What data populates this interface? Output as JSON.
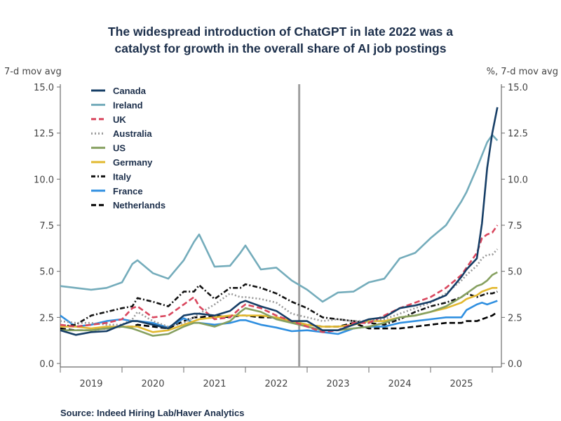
{
  "title_lines": [
    "The widespread introduction of ChatGPT in late 2022 was a",
    "catalyst for growth in the overall share of AI job postings"
  ],
  "left_unit": "7-d mov avg",
  "right_unit": "%, 7-d mov avg",
  "source": "Source:  Indeed Hiring Lab/Haver Analytics",
  "chart_data": {
    "type": "line",
    "title": "The widespread introduction of ChatGPT in late 2022 was a catalyst for growth in the overall share of AI job postings",
    "ylabel_left": "7-d mov avg",
    "ylabel_right": "%, 7-d mov avg",
    "ylim": [
      0,
      15
    ],
    "yticks": [
      "0.0",
      "2.5",
      "5.0",
      "7.5",
      "10.0",
      "12.5",
      "15.0"
    ],
    "xticks": [
      "2019",
      "2020",
      "2021",
      "2022",
      "2023",
      "2024",
      "2025"
    ],
    "grid": false,
    "legend": "top-left",
    "vline_x": "2022-12",
    "vline_color": "#a0a0a0",
    "x": [
      "2019-01",
      "2019-04",
      "2019-07",
      "2019-10",
      "2020-01",
      "2020-03",
      "2020-04",
      "2020-07",
      "2020-10",
      "2021-01",
      "2021-03",
      "2021-04",
      "2021-07",
      "2021-10",
      "2021-12",
      "2022-01",
      "2022-04",
      "2022-07",
      "2022-10",
      "2023-01",
      "2023-04",
      "2023-07",
      "2023-10",
      "2024-01",
      "2024-04",
      "2024-07",
      "2024-10",
      "2025-01",
      "2025-04",
      "2025-07",
      "2025-08",
      "2025-10",
      "2025-11",
      "2025-12",
      "2026-01",
      "2026-02"
    ],
    "series": [
      {
        "name": "Canada",
        "color": "#163e66",
        "dash": "solid",
        "values": [
          1.8,
          1.55,
          1.7,
          1.75,
          2.1,
          2.3,
          2.3,
          2.1,
          1.9,
          2.6,
          2.7,
          2.7,
          2.6,
          2.85,
          3.3,
          3.4,
          3.1,
          2.85,
          2.3,
          2.3,
          1.8,
          1.8,
          2.1,
          2.4,
          2.5,
          3.0,
          3.15,
          3.35,
          3.7,
          4.7,
          5.1,
          5.7,
          7.6,
          10.6,
          12.5,
          13.9
        ]
      },
      {
        "name": "Ireland",
        "color": "#74acbb",
        "dash": "solid",
        "values": [
          4.2,
          4.1,
          4.0,
          4.1,
          4.4,
          5.4,
          5.6,
          4.9,
          4.6,
          5.6,
          6.6,
          7.0,
          5.25,
          5.3,
          6.0,
          6.4,
          5.1,
          5.2,
          4.5,
          4.0,
          3.35,
          3.85,
          3.9,
          4.4,
          4.6,
          5.7,
          6.0,
          6.8,
          7.5,
          8.8,
          9.3,
          10.6,
          11.3,
          12.0,
          12.4,
          12.1
        ]
      },
      {
        "name": "UK",
        "color": "#d9475e",
        "dash": "dashed",
        "values": [
          2.1,
          2.0,
          2.1,
          2.2,
          2.4,
          3.0,
          3.1,
          2.5,
          2.6,
          3.2,
          3.6,
          3.1,
          2.4,
          2.5,
          3.0,
          3.2,
          3.0,
          2.6,
          2.3,
          2.0,
          1.7,
          1.8,
          2.2,
          2.2,
          2.6,
          3.0,
          3.3,
          3.6,
          4.1,
          4.8,
          5.2,
          6.0,
          6.8,
          7.0,
          7.1,
          7.5
        ]
      },
      {
        "name": "Australia",
        "color": "#9a9a9a",
        "dash": "dotted",
        "values": [
          2.3,
          2.2,
          2.2,
          2.1,
          2.1,
          2.4,
          2.8,
          2.3,
          2.0,
          2.2,
          2.5,
          2.7,
          3.2,
          3.8,
          3.6,
          3.6,
          3.5,
          3.3,
          2.7,
          2.5,
          2.3,
          2.4,
          2.3,
          2.3,
          2.4,
          2.7,
          3.0,
          3.3,
          3.8,
          4.5,
          4.8,
          5.3,
          5.7,
          5.9,
          5.9,
          6.2
        ]
      },
      {
        "name": "US",
        "color": "#86a060",
        "dash": "solid",
        "values": [
          1.8,
          1.8,
          1.8,
          1.9,
          2.0,
          1.9,
          1.8,
          1.5,
          1.6,
          2.0,
          2.2,
          2.2,
          2.0,
          2.3,
          2.8,
          3.0,
          2.8,
          2.4,
          2.2,
          2.0,
          1.8,
          1.8,
          1.9,
          2.0,
          2.2,
          2.5,
          2.6,
          2.8,
          3.1,
          3.6,
          3.8,
          4.2,
          4.3,
          4.5,
          4.8,
          4.95
        ]
      },
      {
        "name": "Germany",
        "color": "#e2b82e",
        "dash": "solid",
        "values": [
          2.0,
          2.0,
          1.9,
          2.0,
          2.0,
          2.0,
          2.0,
          1.7,
          1.8,
          2.1,
          2.3,
          2.4,
          2.5,
          2.6,
          2.6,
          2.6,
          2.6,
          2.5,
          2.3,
          2.1,
          2.0,
          2.0,
          2.1,
          2.3,
          2.3,
          2.5,
          2.6,
          2.8,
          3.0,
          3.3,
          3.5,
          3.7,
          3.9,
          4.0,
          4.1,
          4.1
        ]
      },
      {
        "name": "Italy",
        "color": "#111111",
        "dash": "dashdot",
        "values": [
          2.0,
          2.1,
          2.6,
          2.8,
          3.0,
          3.1,
          3.55,
          3.35,
          3.1,
          3.9,
          3.9,
          4.25,
          3.5,
          4.1,
          4.1,
          4.3,
          4.1,
          3.8,
          3.35,
          3.0,
          2.5,
          2.4,
          2.3,
          2.2,
          2.1,
          2.4,
          2.8,
          3.1,
          3.3,
          3.6,
          3.8,
          3.6,
          3.7,
          3.8,
          3.8,
          3.9
        ]
      },
      {
        "name": "France",
        "color": "#2f8fe0",
        "dash": "solid",
        "values": [
          2.6,
          2.0,
          2.1,
          2.3,
          2.4,
          2.3,
          2.3,
          2.2,
          1.95,
          2.45,
          2.2,
          2.2,
          2.1,
          2.2,
          2.35,
          2.35,
          2.1,
          1.95,
          1.75,
          1.8,
          1.7,
          1.6,
          1.9,
          2.0,
          2.0,
          2.2,
          2.3,
          2.4,
          2.5,
          2.5,
          2.9,
          3.2,
          3.3,
          3.2,
          3.3,
          3.4
        ]
      },
      {
        "name": "Netherlands",
        "color": "#000000",
        "dash": "dashed",
        "values": [
          1.9,
          1.8,
          1.8,
          1.9,
          2.0,
          2.0,
          2.1,
          2.0,
          1.9,
          2.3,
          2.5,
          2.5,
          2.6,
          2.5,
          2.6,
          2.6,
          2.5,
          2.5,
          2.3,
          2.1,
          2.0,
          2.0,
          2.2,
          1.9,
          1.9,
          1.9,
          2.0,
          2.1,
          2.2,
          2.2,
          2.3,
          2.3,
          2.4,
          2.5,
          2.6,
          2.8
        ]
      }
    ]
  }
}
